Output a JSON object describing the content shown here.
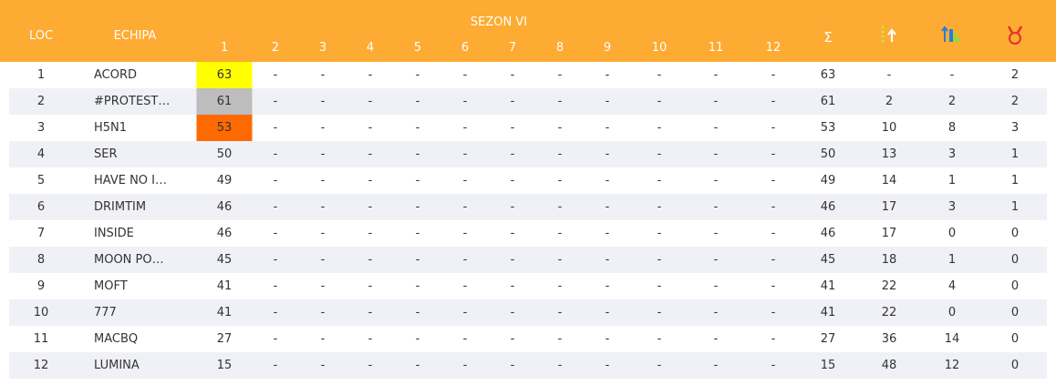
{
  "header": {
    "loc": "LOC",
    "team": "ECHIPA",
    "season": "SEZON VI",
    "rounds": [
      "1",
      "2",
      "3",
      "4",
      "5",
      "6",
      "7",
      "8",
      "9",
      "10",
      "11",
      "12"
    ],
    "sum": "Σ"
  },
  "table": {
    "rows": [
      [
        "1",
        "ACORD",
        "63",
        "-",
        "-",
        "-",
        "-",
        "-",
        "-",
        "-",
        "-",
        "-",
        "-",
        "-",
        "63",
        "-",
        "-",
        "2"
      ],
      [
        "2",
        "#PROTEST…",
        "61",
        "-",
        "-",
        "-",
        "-",
        "-",
        "-",
        "-",
        "-",
        "-",
        "-",
        "-",
        "61",
        "2",
        "2",
        "2"
      ],
      [
        "3",
        "H5N1",
        "53",
        "-",
        "-",
        "-",
        "-",
        "-",
        "-",
        "-",
        "-",
        "-",
        "-",
        "-",
        "53",
        "10",
        "8",
        "3"
      ],
      [
        "4",
        "SER",
        "50",
        "-",
        "-",
        "-",
        "-",
        "-",
        "-",
        "-",
        "-",
        "-",
        "-",
        "-",
        "50",
        "13",
        "3",
        "1"
      ],
      [
        "5",
        "HAVE NO I…",
        "49",
        "-",
        "-",
        "-",
        "-",
        "-",
        "-",
        "-",
        "-",
        "-",
        "-",
        "-",
        "49",
        "14",
        "1",
        "1"
      ],
      [
        "6",
        "DRIMTIM",
        "46",
        "-",
        "-",
        "-",
        "-",
        "-",
        "-",
        "-",
        "-",
        "-",
        "-",
        "-",
        "46",
        "17",
        "3",
        "1"
      ],
      [
        "7",
        "INSIDE",
        "46",
        "-",
        "-",
        "-",
        "-",
        "-",
        "-",
        "-",
        "-",
        "-",
        "-",
        "-",
        "46",
        "17",
        "0",
        "0"
      ],
      [
        "8",
        "MOON PO…",
        "45",
        "-",
        "-",
        "-",
        "-",
        "-",
        "-",
        "-",
        "-",
        "-",
        "-",
        "-",
        "45",
        "18",
        "1",
        "0"
      ],
      [
        "9",
        "MOFT",
        "41",
        "-",
        "-",
        "-",
        "-",
        "-",
        "-",
        "-",
        "-",
        "-",
        "-",
        "-",
        "41",
        "22",
        "4",
        "0"
      ],
      [
        "10",
        "777",
        "41",
        "-",
        "-",
        "-",
        "-",
        "-",
        "-",
        "-",
        "-",
        "-",
        "-",
        "-",
        "41",
        "22",
        "0",
        "0"
      ],
      [
        "11",
        "MACBQ",
        "27",
        "-",
        "-",
        "-",
        "-",
        "-",
        "-",
        "-",
        "-",
        "-",
        "-",
        "-",
        "27",
        "36",
        "14",
        "0"
      ],
      [
        "12",
        "LUMINA",
        "15",
        "-",
        "-",
        "-",
        "-",
        "-",
        "-",
        "-",
        "-",
        "-",
        "-",
        "-",
        "15",
        "48",
        "12",
        "0"
      ]
    ]
  }
}
